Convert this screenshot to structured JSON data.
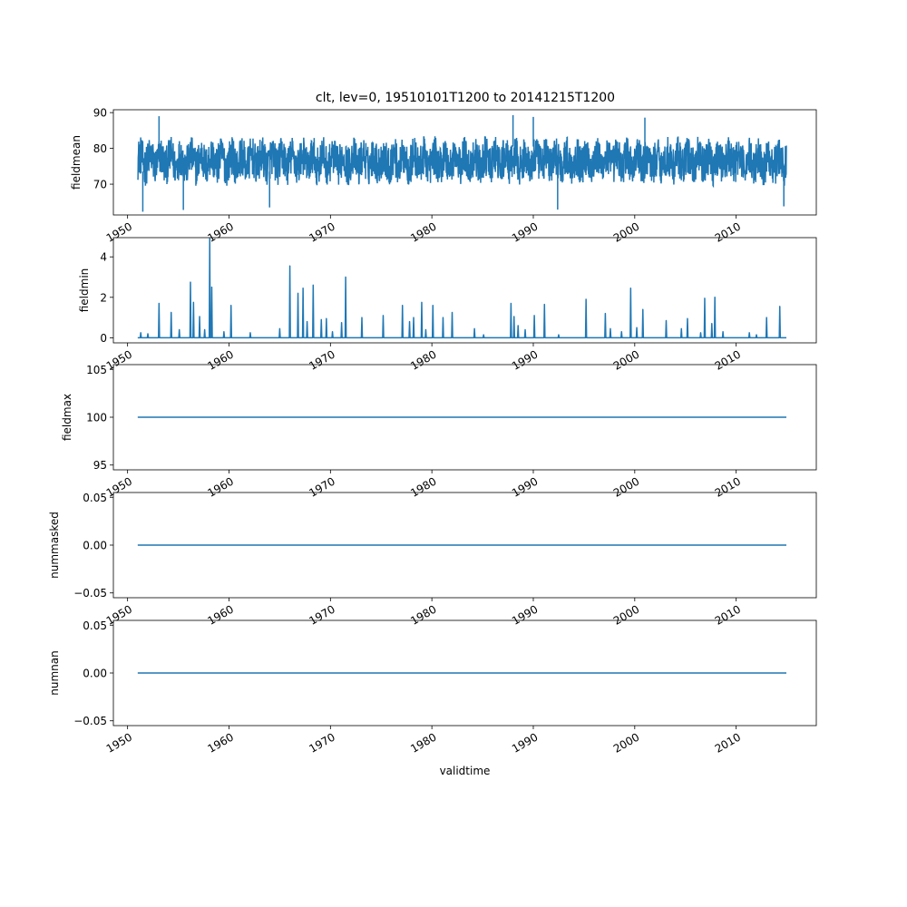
{
  "title": "clt, lev=0, 19510101T1200 to 20141215T1200",
  "colors": {
    "series": "#1f77b4",
    "axis": "#000000"
  },
  "chart_data": [
    {
      "type": "line",
      "ylabel": "fieldmean",
      "xlabel": "",
      "xlim": [
        1948.6,
        2017.9
      ],
      "ylim": [
        61.4,
        90.8
      ],
      "x_ticks": [
        "1950",
        "1960",
        "1970",
        "1980",
        "1990",
        "2000",
        "2010"
      ],
      "y_ticks": [
        "70",
        "80",
        "90"
      ],
      "y_tick_values": [
        70,
        80,
        90
      ],
      "x_range": [
        1951.0,
        2014.95
      ],
      "series": [
        {
          "style": "noisy-band",
          "base": 76.5,
          "swing": 5.5,
          "min": 62.3,
          "max": 89.4
        }
      ],
      "spikes": [
        {
          "x": 1951.5,
          "y": 62.3
        },
        {
          "x": 1955.5,
          "y": 62.8
        },
        {
          "x": 1964.0,
          "y": 63.5
        },
        {
          "x": 1992.4,
          "y": 62.9
        },
        {
          "x": 2014.7,
          "y": 63.8
        },
        {
          "x": 1953.1,
          "y": 89.0
        },
        {
          "x": 1988.0,
          "y": 89.3
        },
        {
          "x": 1990.0,
          "y": 88.8
        },
        {
          "x": 2001.0,
          "y": 88.6
        }
      ]
    },
    {
      "type": "line",
      "ylabel": "fieldmin",
      "xlabel": "",
      "xlim": [
        1948.6,
        2017.9
      ],
      "ylim": [
        -0.25,
        4.95
      ],
      "x_ticks": [
        "1950",
        "1960",
        "1970",
        "1980",
        "1990",
        "2000",
        "2010"
      ],
      "y_ticks": [
        "0",
        "2",
        "4"
      ],
      "y_tick_values": [
        0,
        2,
        4
      ],
      "x_range": [
        1951.0,
        2014.95
      ],
      "baseline": 0,
      "spikes": [
        {
          "x": 1951.3,
          "y": 0.25
        },
        {
          "x": 1952.0,
          "y": 0.2
        },
        {
          "x": 1953.1,
          "y": 1.7
        },
        {
          "x": 1954.3,
          "y": 1.25
        },
        {
          "x": 1955.1,
          "y": 0.4
        },
        {
          "x": 1956.2,
          "y": 2.75
        },
        {
          "x": 1956.5,
          "y": 1.75
        },
        {
          "x": 1957.1,
          "y": 1.05
        },
        {
          "x": 1957.6,
          "y": 0.4
        },
        {
          "x": 1958.1,
          "y": 4.9
        },
        {
          "x": 1958.3,
          "y": 2.5
        },
        {
          "x": 1959.5,
          "y": 0.3
        },
        {
          "x": 1960.2,
          "y": 1.6
        },
        {
          "x": 1962.1,
          "y": 0.25
        },
        {
          "x": 1965.0,
          "y": 0.45
        },
        {
          "x": 1966.0,
          "y": 3.55
        },
        {
          "x": 1966.8,
          "y": 2.2
        },
        {
          "x": 1967.3,
          "y": 2.45
        },
        {
          "x": 1967.7,
          "y": 0.8
        },
        {
          "x": 1968.3,
          "y": 2.6
        },
        {
          "x": 1969.1,
          "y": 0.9
        },
        {
          "x": 1969.6,
          "y": 0.95
        },
        {
          "x": 1970.2,
          "y": 0.3
        },
        {
          "x": 1971.1,
          "y": 0.75
        },
        {
          "x": 1971.5,
          "y": 3.0
        },
        {
          "x": 1973.1,
          "y": 1.0
        },
        {
          "x": 1975.2,
          "y": 1.1
        },
        {
          "x": 1977.1,
          "y": 1.6
        },
        {
          "x": 1977.8,
          "y": 0.8
        },
        {
          "x": 1978.2,
          "y": 1.0
        },
        {
          "x": 1979.0,
          "y": 1.75
        },
        {
          "x": 1979.4,
          "y": 0.4
        },
        {
          "x": 1980.1,
          "y": 1.6
        },
        {
          "x": 1981.1,
          "y": 1.0
        },
        {
          "x": 1982.0,
          "y": 1.25
        },
        {
          "x": 1984.2,
          "y": 0.45
        },
        {
          "x": 1985.1,
          "y": 0.15
        },
        {
          "x": 1987.8,
          "y": 1.7
        },
        {
          "x": 1988.1,
          "y": 1.05
        },
        {
          "x": 1988.5,
          "y": 0.6
        },
        {
          "x": 1989.2,
          "y": 0.4
        },
        {
          "x": 1990.1,
          "y": 1.1
        },
        {
          "x": 1991.1,
          "y": 1.65
        },
        {
          "x": 1992.5,
          "y": 0.15
        },
        {
          "x": 1995.2,
          "y": 1.9
        },
        {
          "x": 1997.1,
          "y": 1.2
        },
        {
          "x": 1997.6,
          "y": 0.45
        },
        {
          "x": 1998.7,
          "y": 0.3
        },
        {
          "x": 1999.6,
          "y": 2.45
        },
        {
          "x": 2000.2,
          "y": 0.5
        },
        {
          "x": 2000.8,
          "y": 1.4
        },
        {
          "x": 2003.1,
          "y": 0.85
        },
        {
          "x": 2004.6,
          "y": 0.45
        },
        {
          "x": 2005.2,
          "y": 0.95
        },
        {
          "x": 2006.5,
          "y": 0.25
        },
        {
          "x": 2006.9,
          "y": 1.95
        },
        {
          "x": 2007.6,
          "y": 0.7
        },
        {
          "x": 2007.9,
          "y": 2.0
        },
        {
          "x": 2008.7,
          "y": 0.3
        },
        {
          "x": 2011.3,
          "y": 0.25
        },
        {
          "x": 2012.0,
          "y": 0.15
        },
        {
          "x": 2013.0,
          "y": 1.0
        },
        {
          "x": 2014.3,
          "y": 1.55
        }
      ]
    },
    {
      "type": "line",
      "ylabel": "fieldmax",
      "xlabel": "",
      "xlim": [
        1948.6,
        2017.9
      ],
      "ylim": [
        94.5,
        105.5
      ],
      "x_ticks": [
        "1950",
        "1960",
        "1970",
        "1980",
        "1990",
        "2000",
        "2010"
      ],
      "y_ticks": [
        "95",
        "100",
        "105"
      ],
      "y_tick_values": [
        95,
        100,
        105
      ],
      "x_range": [
        1951.0,
        2014.95
      ],
      "constant": 100
    },
    {
      "type": "line",
      "ylabel": "nummasked",
      "xlabel": "",
      "xlim": [
        1948.6,
        2017.9
      ],
      "ylim": [
        -0.055,
        0.055
      ],
      "x_ticks": [
        "1950",
        "1960",
        "1970",
        "1980",
        "1990",
        "2000",
        "2010"
      ],
      "y_ticks": [
        "−0.05",
        "0.00",
        "0.05"
      ],
      "y_tick_values": [
        -0.05,
        0,
        0.05
      ],
      "x_range": [
        1951.0,
        2014.95
      ],
      "constant": 0
    },
    {
      "type": "line",
      "ylabel": "numnan",
      "xlabel": "validtime",
      "xlim": [
        1948.6,
        2017.9
      ],
      "ylim": [
        -0.055,
        0.055
      ],
      "x_ticks": [
        "1950",
        "1960",
        "1970",
        "1980",
        "1990",
        "2000",
        "2010"
      ],
      "y_ticks": [
        "−0.05",
        "0.00",
        "0.05"
      ],
      "y_tick_values": [
        -0.05,
        0,
        0.05
      ],
      "x_range": [
        1951.0,
        2014.95
      ],
      "constant": 0
    }
  ]
}
